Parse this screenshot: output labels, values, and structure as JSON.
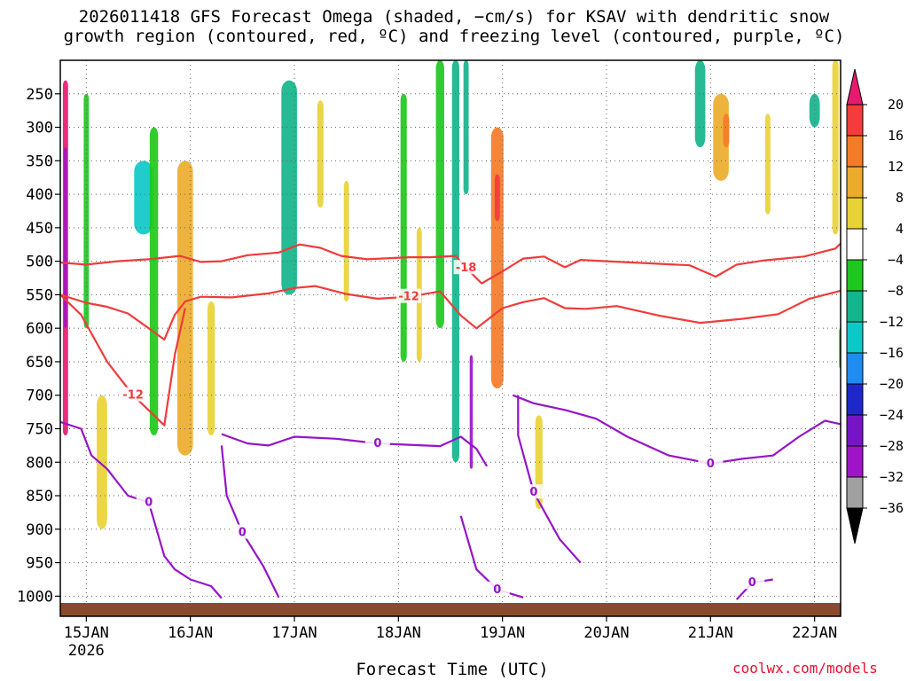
{
  "title_line1": "2026011418 GFS Forecast Omega (shaded, −cm/s) for KSAV with dendritic snow",
  "title_line2": "growth region (contoured, red, ºC) and freezing level (contoured, purple, ºC)",
  "watermark": "coolwx.com/models",
  "chart_data": {
    "type": "heatmap",
    "title": "2026011418 GFS Forecast Omega (shaded, −cm/s) for KSAV with dendritic snow growth region (contoured, red, ºC) and freezing level (contoured, purple, ºC)",
    "xlabel": "Forecast Time (UTC)",
    "ylabel": "",
    "x_ticks": [
      "15JAN",
      "16JAN",
      "17JAN",
      "18JAN",
      "19JAN",
      "20JAN",
      "21JAN",
      "22JAN"
    ],
    "x_year_label": "2026",
    "y_ticks": [
      250,
      300,
      350,
      400,
      450,
      500,
      550,
      600,
      650,
      700,
      750,
      800,
      850,
      900,
      950,
      1000
    ],
    "y_range_hpa": [
      200,
      1030
    ],
    "grid": true,
    "colorbar": {
      "labels": [
        "20",
        "16",
        "12",
        "8",
        "4",
        "−4",
        "−8",
        "−12",
        "−16",
        "−20",
        "−24",
        "−28",
        "−32",
        "−36"
      ],
      "colors": [
        "#e8196e",
        "#f43c3c",
        "#f47c28",
        "#ebac2c",
        "#e8d236",
        "#ffffff",
        "#1ec81e",
        "#14b48c",
        "#0ec8c8",
        "#1e8cf0",
        "#1e28c8",
        "#7814c8",
        "#a014c8",
        "#a0a0a0",
        "#000000"
      ]
    },
    "red_contours": [
      {
        "label": "-18",
        "points": [
          [
            14.75,
            502
          ],
          [
            15.0,
            505
          ],
          [
            15.3,
            500
          ],
          [
            15.6,
            497
          ],
          [
            15.9,
            492
          ],
          [
            16.1,
            501
          ],
          [
            16.3,
            500
          ],
          [
            16.55,
            491
          ],
          [
            16.85,
            487
          ],
          [
            17.05,
            475
          ],
          [
            17.25,
            480
          ],
          [
            17.45,
            492
          ],
          [
            17.7,
            497
          ],
          [
            18.1,
            494
          ],
          [
            18.3,
            494
          ],
          [
            18.55,
            492
          ],
          [
            18.65,
            510
          ],
          [
            18.8,
            533
          ],
          [
            19.0,
            515
          ],
          [
            19.2,
            496
          ],
          [
            19.4,
            493
          ],
          [
            19.6,
            509
          ],
          [
            19.75,
            498
          ],
          [
            20.0,
            500
          ],
          [
            20.4,
            503
          ],
          [
            20.8,
            506
          ],
          [
            21.05,
            523
          ],
          [
            21.25,
            505
          ],
          [
            21.5,
            499
          ],
          [
            21.9,
            493
          ],
          [
            22.2,
            481
          ],
          [
            22.3,
            466
          ]
        ]
      },
      {
        "label": "-12",
        "points": [
          [
            14.75,
            550
          ],
          [
            15.0,
            562
          ],
          [
            15.2,
            568
          ],
          [
            15.4,
            578
          ],
          [
            15.6,
            600
          ],
          [
            15.75,
            617
          ],
          [
            15.85,
            580
          ],
          [
            15.95,
            560
          ],
          [
            16.1,
            553
          ],
          [
            16.4,
            554
          ],
          [
            16.75,
            548
          ],
          [
            17.0,
            540
          ],
          [
            17.2,
            537
          ],
          [
            17.5,
            549
          ],
          [
            17.8,
            556
          ],
          [
            18.1,
            553
          ],
          [
            18.4,
            545
          ],
          [
            18.6,
            581
          ],
          [
            18.75,
            600
          ],
          [
            19.0,
            570
          ],
          [
            19.2,
            561
          ],
          [
            19.4,
            555
          ],
          [
            19.6,
            570
          ],
          [
            19.8,
            571
          ],
          [
            20.1,
            567
          ],
          [
            20.5,
            581
          ],
          [
            20.9,
            592
          ],
          [
            21.3,
            586
          ],
          [
            21.65,
            579
          ],
          [
            21.95,
            556
          ],
          [
            22.3,
            542
          ]
        ]
      },
      {
        "label": "-12",
        "points": [
          [
            14.75,
            550
          ],
          [
            14.95,
            580
          ],
          [
            15.2,
            650
          ],
          [
            15.45,
            700
          ],
          [
            15.75,
            745
          ],
          [
            15.85,
            640
          ],
          [
            15.95,
            570
          ]
        ]
      }
    ],
    "purple_contours": [
      {
        "label": "0",
        "points": [
          [
            14.75,
            740
          ],
          [
            14.95,
            750
          ],
          [
            15.05,
            790
          ],
          [
            15.2,
            810
          ],
          [
            15.4,
            850
          ],
          [
            15.6,
            860
          ],
          [
            15.75,
            940
          ],
          [
            15.85,
            960
          ],
          [
            16.0,
            975
          ],
          [
            16.2,
            985
          ],
          [
            16.3,
            1003
          ]
        ]
      },
      {
        "label": "0",
        "points": [
          [
            16.3,
            758
          ],
          [
            16.55,
            772
          ],
          [
            16.75,
            775
          ],
          [
            17.0,
            762
          ],
          [
            17.4,
            765
          ],
          [
            17.8,
            772
          ],
          [
            18.1,
            774
          ],
          [
            18.4,
            776
          ],
          [
            18.6,
            762
          ],
          [
            18.75,
            780
          ],
          [
            18.85,
            806
          ]
        ]
      },
      {
        "label": "0",
        "points": [
          [
            16.3,
            775
          ],
          [
            16.35,
            850
          ],
          [
            16.5,
            905
          ],
          [
            16.7,
            955
          ],
          [
            16.85,
            1002
          ]
        ]
      },
      {
        "label": "0",
        "points": [
          [
            19.1,
            700
          ],
          [
            19.3,
            712
          ],
          [
            19.6,
            722
          ],
          [
            19.9,
            735
          ],
          [
            20.2,
            762
          ],
          [
            20.6,
            790
          ],
          [
            21.0,
            802
          ],
          [
            21.3,
            795
          ],
          [
            21.6,
            790
          ],
          [
            21.85,
            762
          ],
          [
            22.1,
            738
          ],
          [
            22.3,
            745
          ]
        ]
      },
      {
        "label": "0",
        "points": [
          [
            19.15,
            700
          ],
          [
            19.15,
            760
          ],
          [
            19.3,
            845
          ],
          [
            19.55,
            915
          ],
          [
            19.75,
            950
          ]
        ]
      },
      {
        "label": "0",
        "points": [
          [
            18.6,
            880
          ],
          [
            18.75,
            960
          ],
          [
            18.95,
            990
          ],
          [
            19.2,
            1002
          ]
        ]
      },
      {
        "label": "0",
        "points": [
          [
            21.25,
            1005
          ],
          [
            21.4,
            980
          ],
          [
            21.6,
            975
          ]
        ]
      }
    ],
    "omega_blobs": [
      {
        "x": 14.8,
        "p_top": 230,
        "p_bot": 760,
        "w": 0.05,
        "value": 20
      },
      {
        "x": 14.8,
        "p_top": 330,
        "p_bot": 600,
        "w": 0.03,
        "value": -30
      },
      {
        "x": 15.0,
        "p_top": 250,
        "p_bot": 600,
        "w": 0.05,
        "value": -6
      },
      {
        "x": 15.15,
        "p_top": 700,
        "p_bot": 900,
        "w": 0.1,
        "value": 6
      },
      {
        "x": 15.55,
        "p_top": 350,
        "p_bot": 460,
        "w": 0.18,
        "value": -14
      },
      {
        "x": 15.65,
        "p_top": 300,
        "p_bot": 760,
        "w": 0.08,
        "value": -6
      },
      {
        "x": 15.95,
        "p_top": 350,
        "p_bot": 790,
        "w": 0.15,
        "value": 10
      },
      {
        "x": 16.2,
        "p_top": 560,
        "p_bot": 760,
        "w": 0.07,
        "value": 6
      },
      {
        "x": 16.95,
        "p_top": 230,
        "p_bot": 550,
        "w": 0.15,
        "value": -10
      },
      {
        "x": 17.25,
        "p_top": 260,
        "p_bot": 420,
        "w": 0.06,
        "value": 5
      },
      {
        "x": 17.5,
        "p_top": 380,
        "p_bot": 560,
        "w": 0.05,
        "value": 5
      },
      {
        "x": 18.05,
        "p_top": 250,
        "p_bot": 650,
        "w": 0.06,
        "value": -6
      },
      {
        "x": 18.2,
        "p_top": 450,
        "p_bot": 650,
        "w": 0.05,
        "value": 5
      },
      {
        "x": 18.4,
        "p_top": 200,
        "p_bot": 600,
        "w": 0.08,
        "value": -8
      },
      {
        "x": 18.55,
        "p_top": 200,
        "p_bot": 800,
        "w": 0.07,
        "value": -12
      },
      {
        "x": 18.7,
        "p_top": 640,
        "p_bot": 810,
        "w": 0.03,
        "value": -30
      },
      {
        "x": 18.65,
        "p_top": 200,
        "p_bot": 400,
        "w": 0.05,
        "value": -10
      },
      {
        "x": 18.95,
        "p_top": 300,
        "p_bot": 690,
        "w": 0.12,
        "value": 12
      },
      {
        "x": 18.95,
        "p_top": 370,
        "p_bot": 440,
        "w": 0.05,
        "value": 18
      },
      {
        "x": 19.35,
        "p_top": 730,
        "p_bot": 870,
        "w": 0.07,
        "value": 5
      },
      {
        "x": 20.9,
        "p_top": 200,
        "p_bot": 330,
        "w": 0.1,
        "value": -10
      },
      {
        "x": 21.1,
        "p_top": 250,
        "p_bot": 380,
        "w": 0.15,
        "value": 10
      },
      {
        "x": 21.15,
        "p_top": 280,
        "p_bot": 330,
        "w": 0.06,
        "value": 14
      },
      {
        "x": 21.55,
        "p_top": 280,
        "p_bot": 430,
        "w": 0.05,
        "value": 6
      },
      {
        "x": 22.0,
        "p_top": 250,
        "p_bot": 300,
        "w": 0.1,
        "value": -10
      },
      {
        "x": 22.2,
        "p_top": 200,
        "p_bot": 460,
        "w": 0.06,
        "value": 5
      },
      {
        "x": 22.25,
        "p_top": 600,
        "p_bot": 660,
        "w": 0.03,
        "value": -8
      }
    ]
  }
}
